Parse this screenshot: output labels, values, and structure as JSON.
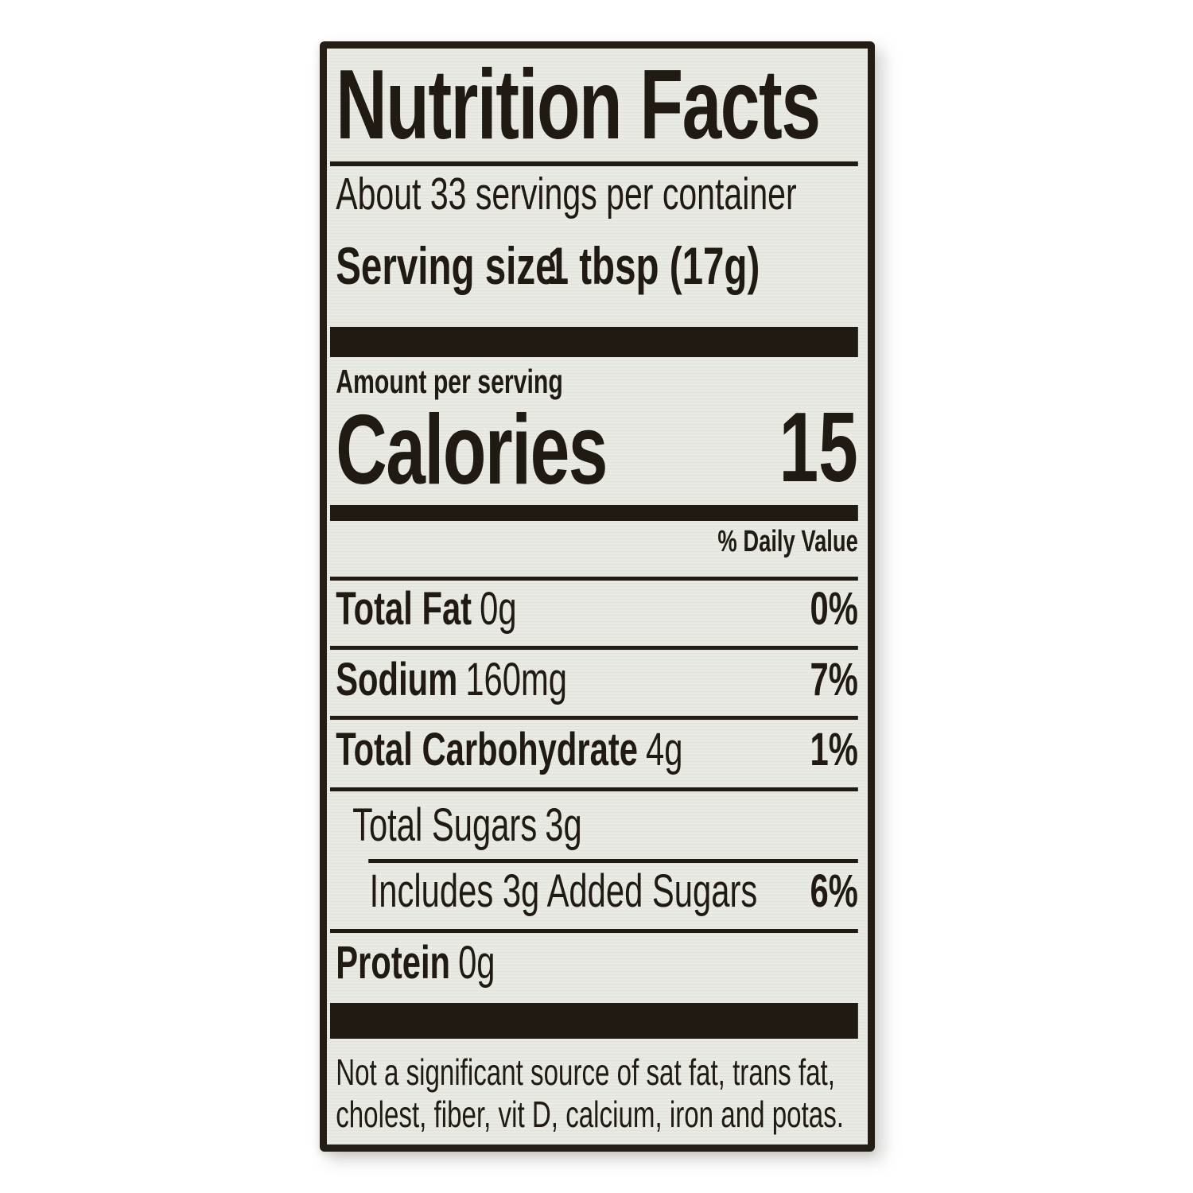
{
  "label": {
    "title": "Nutrition Facts",
    "servings_per_container": "About 33 servings per container",
    "serving_size": {
      "label": "Serving size",
      "value": "1 tbsp (17g)"
    },
    "amount_per_serving": "Amount per serving",
    "calories": {
      "label": "Calories",
      "value": "15"
    },
    "daily_value_header": "% Daily Value",
    "rows": [
      {
        "name": "Total Fat",
        "amount": "0g",
        "dv": "0%"
      },
      {
        "name": "Sodium",
        "amount": "160mg",
        "dv": "7%"
      },
      {
        "name": "Total Carbohydrate",
        "amount": "4g",
        "dv": "1%"
      },
      {
        "name": "Total Sugars",
        "amount": "3g",
        "dv": ""
      },
      {
        "name": "Includes 3g Added Sugars",
        "amount": "",
        "dv": "6%"
      },
      {
        "name": "Protein",
        "amount": "0g",
        "dv": ""
      }
    ],
    "footnote_lines": [
      "Not a significant source of sat fat, trans fat,",
      "cholest, fiber, vit D, calcium, iron and potas."
    ],
    "colors": {
      "ink": "#201a13",
      "paper": "#e9eae4"
    }
  }
}
